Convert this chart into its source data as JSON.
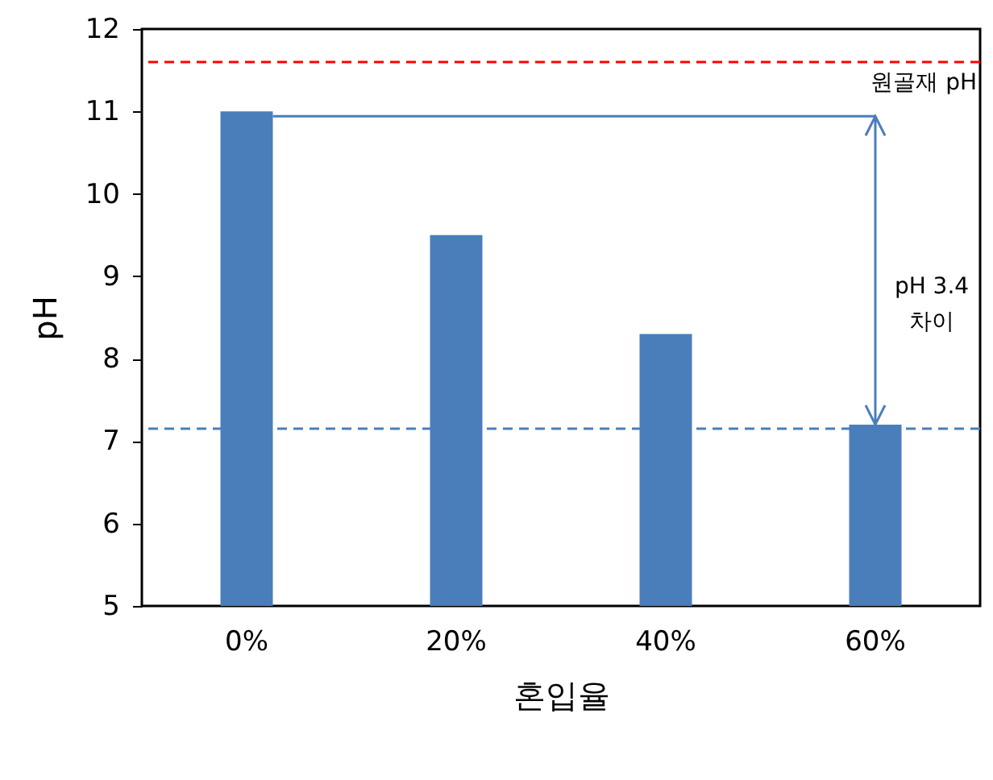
{
  "chart_data": {
    "type": "bar",
    "xlabel": "혼입율",
    "ylabel": "pH",
    "categories": [
      "0%",
      "20%",
      "40%",
      "60%"
    ],
    "values": [
      11.0,
      9.5,
      8.3,
      7.2
    ],
    "color": "#4a7ebb",
    "ylim": [
      5,
      12
    ],
    "yticks": [
      5,
      6,
      7,
      8,
      9,
      10,
      11,
      12
    ],
    "grid": false,
    "ref_lines": [
      {
        "axis": "y",
        "value": 11.6,
        "label": "원골재 pH",
        "color": "#ff0000",
        "line_style": "dashed"
      },
      {
        "axis": "y",
        "value": 7.15,
        "label": null,
        "color": "#4a7ebb",
        "line_style": "dashed"
      }
    ],
    "annotations": [
      "pH 3.4\n차이"
    ]
  }
}
